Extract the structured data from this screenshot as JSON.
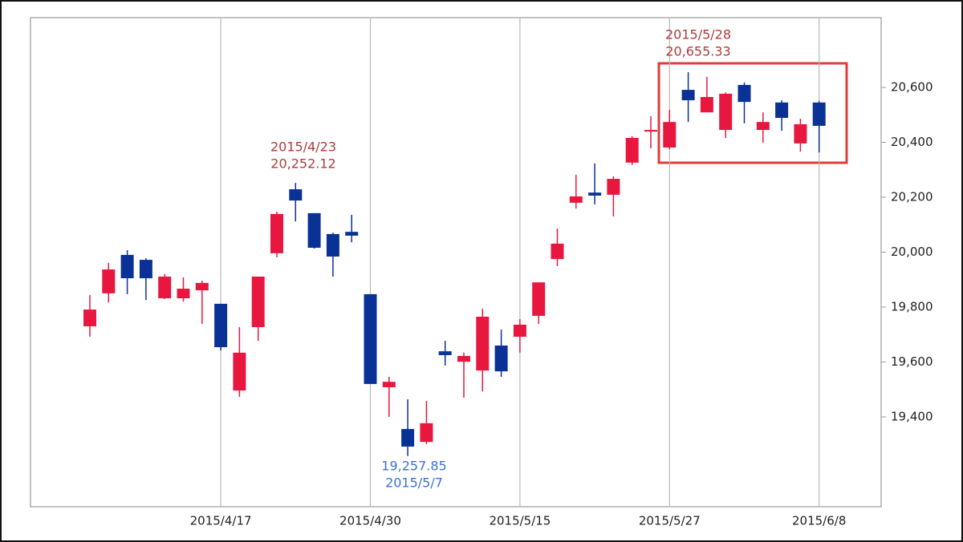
{
  "chart_data": {
    "type": "candlestick",
    "categories": [
      null,
      null,
      null,
      null,
      null,
      null,
      null,
      "2015/4/17",
      null,
      null,
      null,
      null,
      null,
      null,
      null,
      "2015/4/30",
      null,
      null,
      null,
      null,
      null,
      null,
      null,
      "2015/5/15",
      null,
      null,
      null,
      null,
      null,
      null,
      null,
      "2015/5/27",
      null,
      null,
      null,
      null,
      null,
      null,
      null,
      "2015/6/8"
    ],
    "open": [
      19730,
      19850,
      19990,
      19972,
      19832,
      19832,
      19861,
      19812,
      19496,
      19727,
      19996,
      20229,
      20142,
      20066,
      20074,
      19847,
      19508,
      19356,
      19309,
      19639,
      19601,
      19569,
      19660,
      19692,
      19768,
      19975,
      20180,
      20217,
      20209,
      20326,
      20439,
      20381,
      20591,
      20509,
      20445,
      20609,
      20445,
      20545,
      20396,
      20545
    ],
    "high": [
      19844,
      19961,
      20007,
      19978,
      19920,
      19908,
      19896,
      19812,
      19727,
      19911,
      20147,
      20252.12,
      20142,
      20071,
      20136,
      19847,
      19546,
      19464,
      19458,
      19677,
      19634,
      19794,
      19718,
      19756,
      19890,
      20086,
      20282,
      20323,
      20276,
      20422,
      20495,
      20518,
      20655.33,
      20638,
      20582,
      20618,
      20509,
      20553,
      20486,
      20550
    ],
    "low": [
      19692,
      19817,
      19847,
      19826,
      19829,
      19820,
      19739,
      19642,
      19473,
      19677,
      19981,
      20112,
      20013,
      19911,
      20036,
      19520,
      19400,
      19257.85,
      19301,
      19587,
      19470,
      19493,
      19546,
      19634,
      19739,
      19949,
      20159,
      20174,
      20130,
      20317,
      20378,
      20375,
      20474,
      20509,
      20416,
      20469,
      20399,
      20442,
      20366,
      20363
    ],
    "close": [
      19791,
      19937,
      19905,
      19905,
      19911,
      19867,
      19888,
      19654,
      19634,
      19911,
      20139,
      20188,
      20016,
      19984,
      20060,
      19520,
      19528,
      19292,
      19377,
      19625,
      19622,
      19765,
      19566,
      19736,
      19890,
      20031,
      20203,
      20206,
      20267,
      20416,
      20445,
      20474,
      20553,
      20565,
      20577,
      20547,
      20474,
      20489,
      20466,
      20460
    ],
    "up_color": "#e8173f",
    "down_color": "#0a3296",
    "ylim": [
      19073,
      20854
    ],
    "yticks": [
      {
        "value": 19400,
        "label": "19,400"
      },
      {
        "value": 19600,
        "label": "19,600"
      },
      {
        "value": 19800,
        "label": "19,800"
      },
      {
        "value": 20000,
        "label": "20,000"
      },
      {
        "value": 20200,
        "label": "20,200"
      },
      {
        "value": 20400,
        "label": "20,400"
      },
      {
        "value": 20600,
        "label": "20,600"
      }
    ],
    "annotations": [
      {
        "lines": [
          "2015/4/23",
          "20,252.12"
        ],
        "color": "#b03a3a"
      },
      {
        "lines": [
          "19,257.85",
          "2015/5/7"
        ],
        "color": "#3a72d8"
      },
      {
        "lines": [
          "2015/5/28",
          "20,655.33"
        ],
        "color": "#b03a3a"
      }
    ]
  }
}
